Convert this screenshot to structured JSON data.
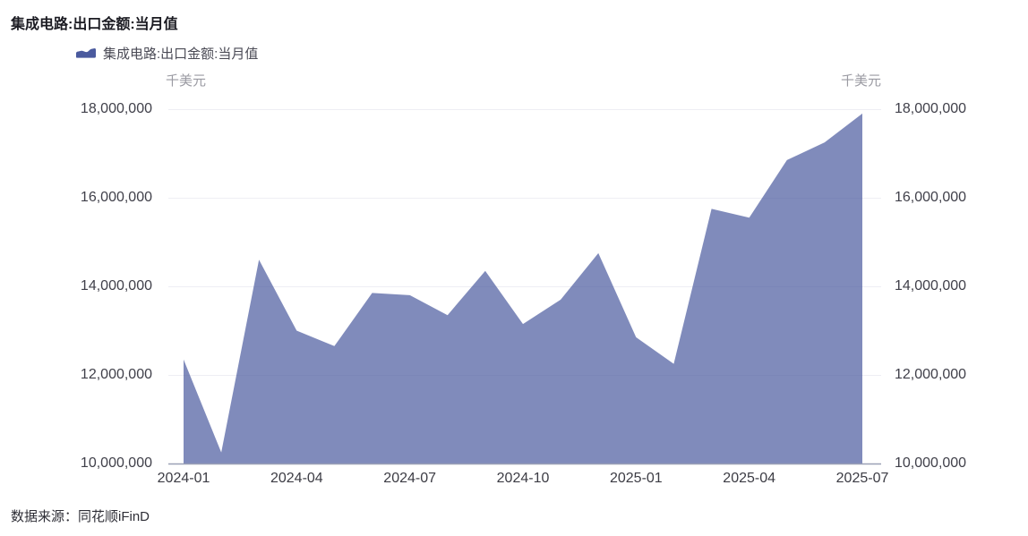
{
  "title": "集成电路:出口金额:当月值",
  "legend": {
    "icon": "area-chart-icon",
    "label": "集成电路:出口金额:当月值"
  },
  "y_axis": {
    "unit": "千美元"
  },
  "source": "数据来源：同花顺iFinD",
  "chart_data": {
    "type": "area",
    "title": "集成电路:出口金额:当月值",
    "series_name": "集成电路:出口金额:当月值",
    "unit": "千美元",
    "x": [
      "2024-01",
      "2024-02",
      "2024-03",
      "2024-04",
      "2024-05",
      "2024-06",
      "2024-07",
      "2024-08",
      "2024-09",
      "2024-10",
      "2024-11",
      "2024-12",
      "2025-01",
      "2025-02",
      "2025-03",
      "2025-04",
      "2025-05",
      "2025-06",
      "2025-07"
    ],
    "values": [
      12350000,
      10250000,
      14600000,
      13000000,
      12650000,
      13850000,
      13800000,
      13350000,
      14350000,
      13150000,
      13700000,
      14750000,
      12850000,
      12250000,
      15750000,
      15550000,
      16850000,
      17250000,
      17900000
    ],
    "x_tick_labels": [
      "2024-01",
      "2024-04",
      "2024-07",
      "2024-10",
      "2025-01",
      "2025-04",
      "2025-07"
    ],
    "y_ticks": [
      10000000,
      12000000,
      14000000,
      16000000,
      18000000
    ],
    "ylim": [
      10000000,
      18000000
    ],
    "grid": true,
    "legend_position": "top-left",
    "colors": {
      "series": "#4A5A9E",
      "area_fill_effective": "#8089BB",
      "area_fill_opacity": 0.7,
      "gridline": "#EEEEF4",
      "axis_line": "#9AA0B6",
      "tick_text": "#40404A",
      "unit_text": "#9A9AA2",
      "title_text": "#1B1B22",
      "legend_text": "#4A4A55",
      "source_text": "#2E2E36"
    }
  }
}
